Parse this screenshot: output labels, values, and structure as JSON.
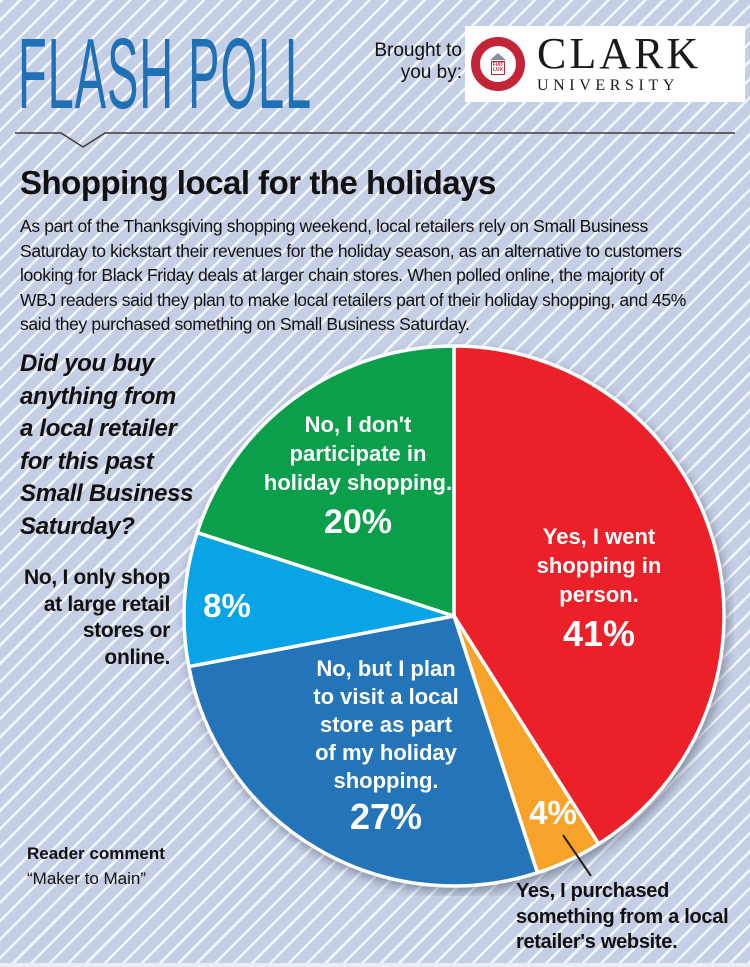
{
  "header": {
    "masthead": "FLASH POLL",
    "sponsor_prefix": "Brought to\nyou by:",
    "sponsor": {
      "name_line1": "CLARK",
      "name_line2": "UNIVERSITY",
      "seal_motto": "FIAT\nLUX"
    }
  },
  "article": {
    "title": "Shopping local for the holidays",
    "intro": "As part of the Thanksgiving shopping weekend, local retailers rely on Small Business\nSaturday to kickstart their revenues for the holiday season, as an alternative to customers\nlooking for Black Friday deals at larger chain stores. When polled online, the majority of\nWBJ readers said they plan to make local retailers part of their holiday shopping, and 45%\nsaid they purchased something on Small Business Saturday.",
    "question": "Did you buy\nanything from\na local retailer\nfor this past\nSmall Business\nSaturday?"
  },
  "chart_data": {
    "type": "pie",
    "title": "Did you buy anything from a local retailer for this past Small Business Saturday?",
    "start_angle_deg": 0,
    "direction": "clockwise",
    "legend_position": "on-slice",
    "slices": [
      {
        "label": "Yes, I went shopping in person.",
        "label_lines": "Yes, I went\nshopping in\nperson.",
        "value": 41,
        "pct_label": "41%",
        "color": "#ec2028",
        "label_placement": "inside"
      },
      {
        "label": "Yes, I purchased something from a local retailer's website.",
        "label_lines": "Yes, I purchased\nsomething from a local\nretailer's website.",
        "value": 4,
        "pct_label": "4%",
        "color": "#f7a229",
        "label_placement": "outside-callout"
      },
      {
        "label": "No, but I plan to visit a local store as part of my holiday shopping.",
        "label_lines": "No, but I plan\nto visit a local\nstore as part\nof my holiday\nshopping.",
        "value": 27,
        "pct_label": "27%",
        "color": "#2374b9",
        "label_placement": "inside"
      },
      {
        "label": "No, I only shop at large retail stores or online.",
        "label_lines": "No, I only shop\nat large retail\nstores or online.",
        "value": 8,
        "pct_label": "8%",
        "color": "#09a4e6",
        "label_placement": "outside-left"
      },
      {
        "label": "No, I don't participate in holiday shopping.",
        "label_lines": "No, I don't\nparticipate in\nholiday shopping.",
        "value": 20,
        "pct_label": "20%",
        "color": "#0b9f4b",
        "label_placement": "inside"
      }
    ]
  },
  "footer": {
    "reader_comment_heading": "Reader comment",
    "reader_comment": "“Maker to Main”"
  },
  "colors": {
    "masthead_blue": "#1f70b4",
    "background_blue": "#c4cee4",
    "stripe_white": "#f2f5fb",
    "text_black": "#111111",
    "seal_red": "#c32437"
  }
}
